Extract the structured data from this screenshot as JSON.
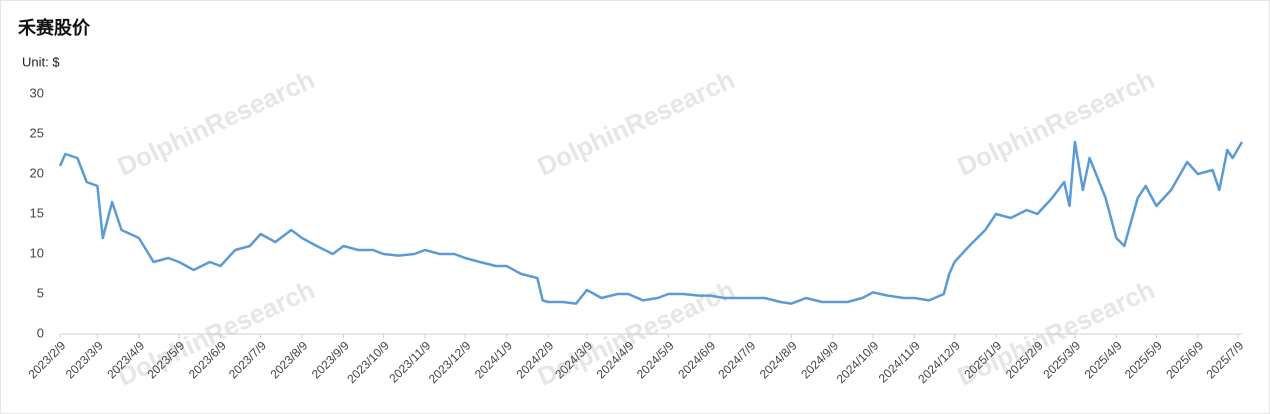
{
  "chart_data": {
    "type": "line",
    "title": "禾赛股价",
    "unit_label": "Unit: $",
    "watermark": "DolphinResearch",
    "x": [
      "2023/2/9",
      "2023/2/13",
      "2023/2/22",
      "2023/3/1",
      "2023/3/9",
      "2023/3/13",
      "2023/3/20",
      "2023/3/27",
      "2023/4/9",
      "2023/4/20",
      "2023/5/1",
      "2023/5/9",
      "2023/5/20",
      "2023/6/1",
      "2023/6/9",
      "2023/6/20",
      "2023/7/1",
      "2023/7/9",
      "2023/7/20",
      "2023/8/1",
      "2023/8/9",
      "2023/8/20",
      "2023/9/1",
      "2023/9/9",
      "2023/9/20",
      "2023/10/1",
      "2023/10/9",
      "2023/10/20",
      "2023/11/1",
      "2023/11/9",
      "2023/11/20",
      "2023/12/1",
      "2023/12/9",
      "2023/12/20",
      "2024/1/1",
      "2024/1/9",
      "2024/1/20",
      "2024/2/1",
      "2024/2/5",
      "2024/2/9",
      "2024/2/20",
      "2024/3/1",
      "2024/3/9",
      "2024/3/20",
      "2024/4/1",
      "2024/4/9",
      "2024/4/20",
      "2024/5/1",
      "2024/5/9",
      "2024/5/20",
      "2024/6/1",
      "2024/6/9",
      "2024/6/20",
      "2024/7/1",
      "2024/7/9",
      "2024/7/20",
      "2024/8/1",
      "2024/8/9",
      "2024/8/20",
      "2024/9/1",
      "2024/9/9",
      "2024/9/20",
      "2024/10/1",
      "2024/10/9",
      "2024/10/20",
      "2024/11/1",
      "2024/11/9",
      "2024/11/20",
      "2024/12/1",
      "2024/12/5",
      "2024/12/9",
      "2024/12/20",
      "2025/1/1",
      "2025/1/9",
      "2025/1/20",
      "2025/2/1",
      "2025/2/9",
      "2025/2/20",
      "2025/3/1",
      "2025/3/5",
      "2025/3/9",
      "2025/3/15",
      "2025/3/20",
      "2025/4/1",
      "2025/4/9",
      "2025/4/15",
      "2025/4/25",
      "2025/5/1",
      "2025/5/9",
      "2025/5/20",
      "2025/6/1",
      "2025/6/9",
      "2025/6/20",
      "2025/6/25",
      "2025/7/1",
      "2025/7/5",
      "2025/7/12"
    ],
    "series": [
      {
        "name": "禾赛",
        "color": "#5b9bd5",
        "values": [
          21,
          22.5,
          22,
          19,
          18.5,
          12,
          16.5,
          13,
          12,
          9,
          9.5,
          9,
          8,
          9,
          8.5,
          10.5,
          11,
          12.5,
          11.5,
          13,
          12,
          11,
          10,
          11,
          10.5,
          10.5,
          10,
          9.8,
          10,
          10.5,
          10,
          10,
          9.5,
          9,
          8.5,
          8.5,
          7.5,
          7,
          4.2,
          4,
          4,
          3.8,
          5.5,
          4.5,
          5,
          5,
          4.2,
          4.5,
          5,
          5,
          4.8,
          4.8,
          4.5,
          4.5,
          4.5,
          4.5,
          4,
          3.8,
          4.5,
          4,
          4,
          4,
          4.5,
          5.2,
          4.8,
          4.5,
          4.5,
          4.2,
          5,
          7.5,
          9,
          11,
          13,
          15,
          14.5,
          15.5,
          15,
          17,
          19,
          16,
          24,
          18,
          22,
          17,
          12,
          11,
          17,
          18.5,
          16,
          18,
          21.5,
          20,
          20.5,
          18,
          23,
          22,
          24
        ]
      }
    ],
    "xlim": [
      "2023/2/9",
      "2025/7/12"
    ],
    "xticks": [
      "2023/2/9",
      "2023/3/9",
      "2023/4/9",
      "2023/5/9",
      "2023/6/9",
      "2023/7/9",
      "2023/8/9",
      "2023/9/9",
      "2023/10/9",
      "2023/11/9",
      "2023/12/9",
      "2024/1/9",
      "2024/2/9",
      "2024/3/9",
      "2024/4/9",
      "2024/5/9",
      "2024/6/9",
      "2024/7/9",
      "2024/8/9",
      "2024/9/9",
      "2024/10/9",
      "2024/11/9",
      "2024/12/9",
      "2025/1/9",
      "2025/2/9",
      "2025/3/9",
      "2025/4/9",
      "2025/5/9",
      "2025/6/9",
      "2025/7/9"
    ],
    "ylim": [
      0,
      30
    ],
    "yticks": [
      0,
      5,
      10,
      15,
      20,
      25,
      30
    ],
    "grid": false
  }
}
